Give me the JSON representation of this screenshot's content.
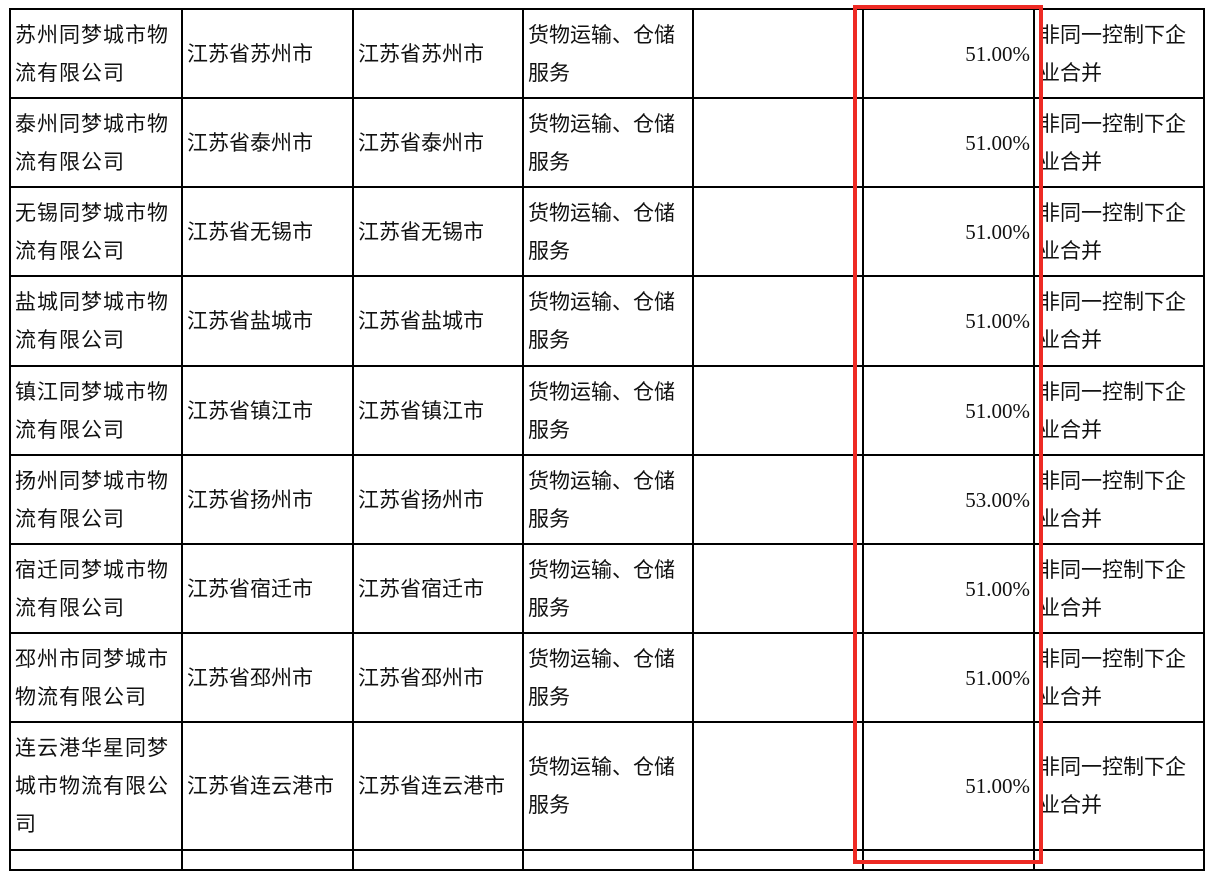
{
  "rows": [
    {
      "name": "苏州同梦城市物流有限公司",
      "location": "江苏省苏州市",
      "registered": "江苏省苏州市",
      "business": "货物运输、仓储服务",
      "blank": "",
      "share": "51.00%",
      "method": "非同一控制下企业合并"
    },
    {
      "name": "泰州同梦城市物流有限公司",
      "location": "江苏省泰州市",
      "registered": "江苏省泰州市",
      "business": "货物运输、仓储服务",
      "blank": "",
      "share": "51.00%",
      "method": "非同一控制下企业合并"
    },
    {
      "name": "无锡同梦城市物流有限公司",
      "location": "江苏省无锡市",
      "registered": "江苏省无锡市",
      "business": "货物运输、仓储服务",
      "blank": "",
      "share": "51.00%",
      "method": "非同一控制下企业合并"
    },
    {
      "name": "盐城同梦城市物流有限公司",
      "location": "江苏省盐城市",
      "registered": "江苏省盐城市",
      "business": "货物运输、仓储服务",
      "blank": "",
      "share": "51.00%",
      "method": "非同一控制下企业合并"
    },
    {
      "name": "镇江同梦城市物流有限公司",
      "location": "江苏省镇江市",
      "registered": "江苏省镇江市",
      "business": "货物运输、仓储服务",
      "blank": "",
      "share": "51.00%",
      "method": "非同一控制下企业合并"
    },
    {
      "name": "扬州同梦城市物流有限公司",
      "location": "江苏省扬州市",
      "registered": "江苏省扬州市",
      "business": "货物运输、仓储服务",
      "blank": "",
      "share": "53.00%",
      "method": "非同一控制下企业合并"
    },
    {
      "name": "宿迁同梦城市物流有限公司",
      "location": "江苏省宿迁市",
      "registered": "江苏省宿迁市",
      "business": "货物运输、仓储服务",
      "blank": "",
      "share": "51.00%",
      "method": "非同一控制下企业合并"
    },
    {
      "name": "邳州市同梦城市物流有限公司",
      "location": "江苏省邳州市",
      "registered": "江苏省邳州市",
      "business": "货物运输、仓储服务",
      "blank": "",
      "share": "51.00%",
      "method": "非同一控制下企业合并"
    },
    {
      "name": "连云港华星同梦城市物流有限公司",
      "location": "江苏省连云港市",
      "registered": "江苏省连云港市",
      "business": "货物运输、仓储服务",
      "blank": "",
      "share": "51.00%",
      "method": "非同一控制下企业合并"
    }
  ],
  "highlight_color": "#ee2a24"
}
